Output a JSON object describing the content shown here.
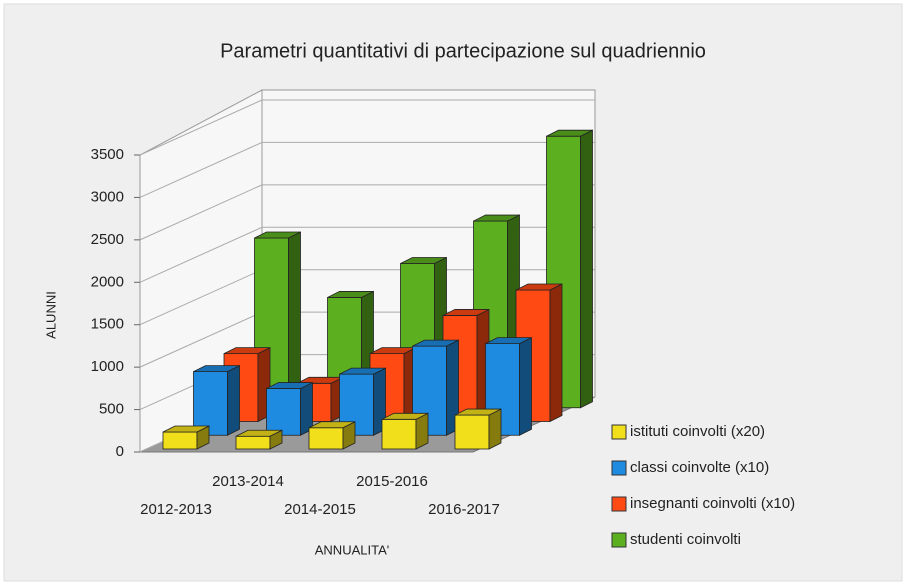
{
  "chart_data": {
    "type": "bar3d",
    "title": "Parametri quantitativi di partecipazione sul quadriennio",
    "ylabel": "ALUNNI",
    "xlabel": "ANNUALITA'",
    "categories": [
      "2012-2013",
      "2013-2014",
      "2014-2015",
      "2015-2016",
      "2016-2017"
    ],
    "series": [
      {
        "name": "istituti coinvolti (x20)",
        "color": "#f2df1c",
        "values": [
          200,
          150,
          250,
          350,
          400
        ]
      },
      {
        "name": "classi coinvolte (x10)",
        "color": "#1e8ae0",
        "values": [
          750,
          550,
          720,
          1050,
          1080
        ]
      },
      {
        "name": "insegnanti coinvolti (x10)",
        "color": "#ff4a14",
        "values": [
          800,
          450,
          800,
          1250,
          1550
        ]
      },
      {
        "name": "studenti coinvolti",
        "color": "#5cb020",
        "values": [
          2000,
          1300,
          1700,
          2200,
          3200
        ]
      }
    ],
    "ylim": [
      0,
      3500
    ],
    "yticks": [
      0,
      500,
      1000,
      1500,
      2000,
      2500,
      3000,
      3500
    ],
    "grid": true
  }
}
